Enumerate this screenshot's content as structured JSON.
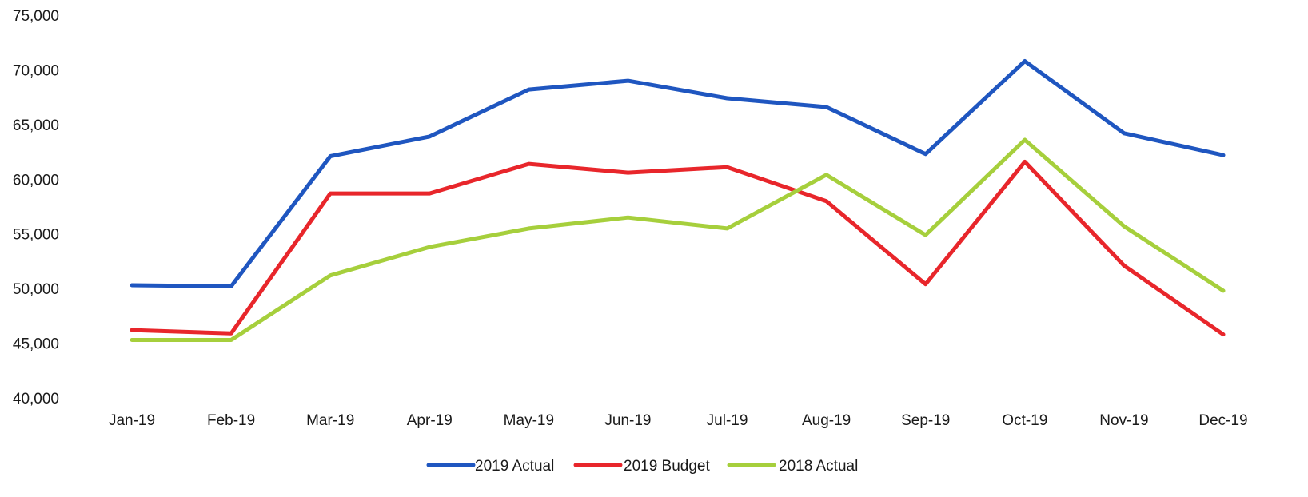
{
  "chart_data": {
    "type": "line",
    "title": "",
    "xlabel": "",
    "ylabel": "",
    "categories": [
      "Jan-19",
      "Feb-19",
      "Mar-19",
      "Apr-19",
      "May-19",
      "Jun-19",
      "Jul-19",
      "Aug-19",
      "Sep-19",
      "Oct-19",
      "Nov-19",
      "Dec-19"
    ],
    "ylim": [
      40000,
      75000
    ],
    "yticks": [
      40000,
      45000,
      50000,
      55000,
      60000,
      65000,
      70000,
      75000
    ],
    "ytick_labels": [
      "40,000",
      "45,000",
      "50,000",
      "55,000",
      "60,000",
      "65,000",
      "70,000",
      "75,000"
    ],
    "grid": false,
    "legend_position": "bottom",
    "series": [
      {
        "name": "2019 Actual",
        "color": "#1f56c0",
        "values": [
          50300,
          50200,
          62100,
          63900,
          68200,
          69000,
          67400,
          66600,
          62300,
          70800,
          64200,
          62200
        ]
      },
      {
        "name": "2019 Budget",
        "color": "#e8262b",
        "values": [
          46200,
          45900,
          58700,
          58700,
          61400,
          60600,
          61100,
          58000,
          50400,
          61600,
          52100,
          45800
        ]
      },
      {
        "name": "2018 Actual",
        "color": "#a6cf3c",
        "values": [
          45300,
          45300,
          51200,
          53800,
          55500,
          56500,
          55500,
          60400,
          54900,
          63600,
          55700,
          49800
        ]
      }
    ]
  }
}
